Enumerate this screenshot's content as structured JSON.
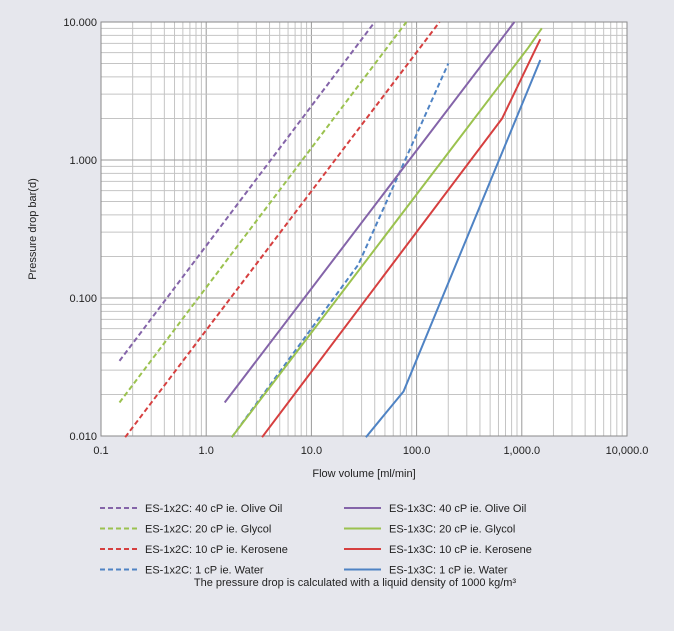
{
  "chart_data": {
    "type": "line",
    "title": "",
    "xlabel": "Flow volume [ml/min]",
    "ylabel": "Pressure drop bar(d)",
    "xscale": "log",
    "yscale": "log",
    "xlim": [
      0.1,
      10000
    ],
    "ylim": [
      0.01,
      10
    ],
    "grid": true,
    "legend_position": "bottom",
    "x_tick_labels": [
      "0.1",
      "1.0",
      "10.0",
      "100.0",
      "1,000.0",
      "10,000.0"
    ],
    "y_tick_labels": [
      "0.010",
      "0.100",
      "1.000",
      "10.000"
    ],
    "series": [
      {
        "name": "ES-1x2C: 40 cP ie. Olive Oil",
        "color": "#8464a9",
        "dashed": true,
        "x": [
          0.15,
          40
        ],
        "y": [
          0.035,
          10
        ]
      },
      {
        "name": "ES-1x2C: 20 cP ie. Glycol",
        "color": "#9bc24f",
        "dashed": true,
        "x": [
          0.15,
          80
        ],
        "y": [
          0.0175,
          10
        ]
      },
      {
        "name": "ES-1x2C: 10 cP ie. Kerosene",
        "color": "#d63f3f",
        "dashed": true,
        "x": [
          0.17,
          165
        ],
        "y": [
          0.0098,
          10
        ]
      },
      {
        "name": "ES-1x2C: 1 cP ie. Water",
        "color": "#4f83c4",
        "dashed": true,
        "x": [
          1.75,
          28,
          200
        ],
        "y": [
          0.0098,
          0.175,
          5.0
        ]
      },
      {
        "name": "ES-1x3C: 40 cP ie. Olive Oil",
        "color": "#8464a9",
        "dashed": false,
        "x": [
          1.5,
          850
        ],
        "y": [
          0.0175,
          10
        ]
      },
      {
        "name": "ES-1x3C: 20 cP ie. Glycol",
        "color": "#9bc24f",
        "dashed": false,
        "x": [
          1.75,
          1150,
          1550
        ],
        "y": [
          0.0098,
          6.5,
          9.0
        ]
      },
      {
        "name": "ES-1x3C: 10 cP ie. Kerosene",
        "color": "#d63f3f",
        "dashed": false,
        "x": [
          3.4,
          650,
          1500
        ],
        "y": [
          0.0098,
          2.0,
          7.5
        ]
      },
      {
        "name": "ES-1x3C: 1 cP ie. Water",
        "color": "#4f83c4",
        "dashed": false,
        "x": [
          33,
          75,
          1500
        ],
        "y": [
          0.0098,
          0.021,
          5.3
        ]
      }
    ],
    "footnote": "The pressure drop is calculated with a liquid density of 1000 kg/m³"
  }
}
